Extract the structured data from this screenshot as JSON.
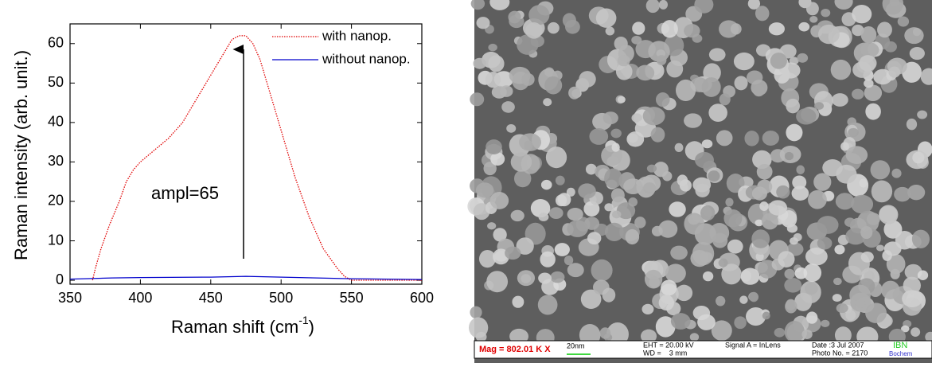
{
  "chart_data": {
    "type": "line",
    "y_label": "Raman intensity (arb. unit.)",
    "x_label": "Raman shift (cm",
    "x_label_sup": "-1",
    "x_label_end": ")",
    "annotation": "ampl=65",
    "xlim": [
      350,
      600
    ],
    "ylim": [
      -1,
      65
    ],
    "xticks": [
      350,
      400,
      450,
      500,
      550,
      600
    ],
    "yticks": [
      0,
      10,
      20,
      30,
      40,
      50,
      60
    ],
    "series": [
      {
        "name": "with nanop.",
        "color": "#e00000",
        "dash": "dotted",
        "x": [
          366,
          368,
          372,
          378,
          385,
          390,
          395,
          400,
          410,
          420,
          430,
          440,
          450,
          460,
          465,
          470,
          475,
          480,
          485,
          490,
          495,
          500,
          510,
          520,
          530,
          540,
          545,
          550,
          560,
          580,
          600
        ],
        "values": [
          0,
          3,
          8,
          14,
          20,
          25,
          28,
          30,
          33,
          36,
          40,
          46,
          52,
          58,
          61,
          62,
          62,
          60,
          56,
          50,
          44,
          38,
          26,
          16,
          8,
          3,
          1,
          0,
          0,
          0,
          0
        ]
      },
      {
        "name": "without nanop.",
        "color": "#0000cc",
        "dash": "solid",
        "x": [
          350,
          380,
          400,
          450,
          475,
          500,
          550,
          600
        ],
        "values": [
          0.3,
          0.6,
          0.7,
          0.8,
          1,
          0.8,
          0.4,
          0.2
        ]
      }
    ]
  },
  "image_panel": {
    "mag": "Mag = 802.01 K X",
    "scale": "20nm",
    "eht": "EHT = 20.00 kV",
    "wd": "WD =    3 mm",
    "signal": "Signal A = InLens",
    "date": "Date :3 Jul 2007",
    "photo": "Photo No. = 2170",
    "logo": "IBN",
    "logo_sub": "Bochem"
  }
}
